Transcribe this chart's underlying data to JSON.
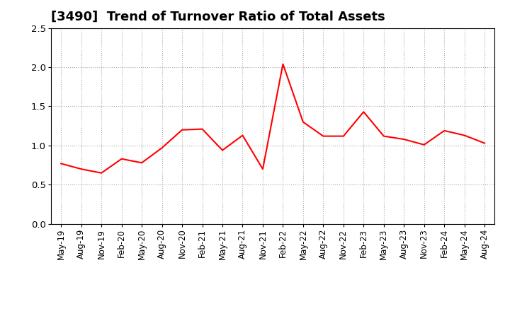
{
  "title": "[3490]  Trend of Turnover Ratio of Total Assets",
  "line_color": "#FF0000",
  "line_width": 1.5,
  "background_color": "#FFFFFF",
  "grid_color": "#AAAAAA",
  "ylim": [
    0.0,
    2.5
  ],
  "yticks": [
    0.0,
    0.5,
    1.0,
    1.5,
    2.0,
    2.5
  ],
  "x_labels": [
    "May-19",
    "Aug-19",
    "Nov-19",
    "Feb-20",
    "May-20",
    "Aug-20",
    "Nov-20",
    "Feb-21",
    "May-21",
    "Aug-21",
    "Nov-21",
    "Feb-22",
    "May-22",
    "Aug-22",
    "Nov-22",
    "Feb-23",
    "May-23",
    "Aug-23",
    "Nov-23",
    "Feb-24",
    "May-24",
    "Aug-24"
  ],
  "values": [
    0.77,
    0.7,
    0.65,
    0.83,
    0.78,
    0.97,
    1.2,
    1.21,
    0.94,
    1.13,
    0.7,
    2.04,
    1.3,
    1.12,
    1.12,
    1.43,
    1.12,
    1.08,
    1.01,
    1.19,
    1.13,
    1.03
  ],
  "title_fontsize": 13,
  "tick_fontsize": 8.5,
  "ytick_fontsize": 9.5
}
